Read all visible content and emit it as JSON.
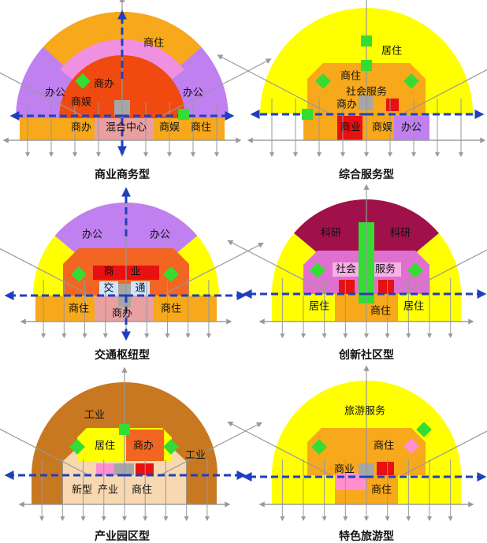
{
  "panels": [
    {
      "caption": "商业商务型",
      "labels": [
        "商住",
        "办公",
        "商办",
        "商娱",
        "办公",
        "商办",
        "混合中心",
        "商娱",
        "商住"
      ]
    },
    {
      "caption": "综合服务型",
      "labels": [
        "居住",
        "商住",
        "社会服务",
        "商办",
        "商业",
        "商娱",
        "办公"
      ]
    },
    {
      "caption": "交通枢纽型",
      "labels": [
        "办公",
        "办公",
        "商",
        "业",
        "交",
        "通",
        "商住",
        "商办",
        "商住"
      ]
    },
    {
      "caption": "创新社区型",
      "labels": [
        "科研",
        "科研",
        "社会",
        "服务",
        "居住",
        "商住",
        "居住"
      ]
    },
    {
      "caption": "产业园区型",
      "labels": [
        "工业",
        "居住",
        "商办",
        "工业",
        "新型",
        "产业",
        "商住"
      ]
    },
    {
      "caption": "特色旅游型",
      "labels": [
        "旅游服务",
        "商住",
        "商业",
        "商住"
      ]
    }
  ]
}
